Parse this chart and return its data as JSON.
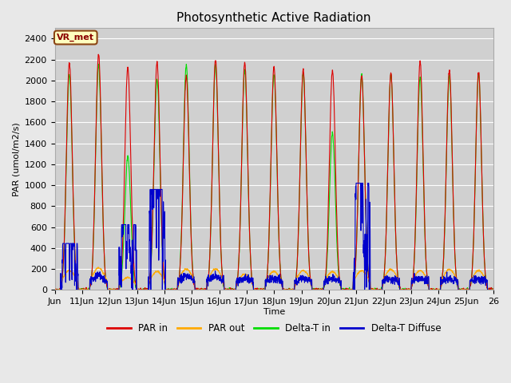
{
  "title": "Photosynthetic Active Radiation",
  "ylabel": "PAR (umol/m2/s)",
  "xlabel": "Time",
  "annotation": "VR_met",
  "ylim": [
    0,
    2500
  ],
  "colors": {
    "PAR_in": "#dd0000",
    "PAR_out": "#ffaa00",
    "Delta_T_in": "#00dd00",
    "Delta_T_Diffuse": "#0000cc"
  },
  "legend_labels": [
    "PAR in",
    "PAR out",
    "Delta-T in",
    "Delta-T Diffuse"
  ],
  "background_color": "#e8e8e8",
  "plot_bg_color": "#d0d0d0",
  "grid_color": "#ffffff",
  "title_fontsize": 11,
  "axis_fontsize": 8,
  "n_days": 15,
  "pts_per_day": 144,
  "x_tick_labels": [
    "Jun",
    "11Jun",
    "12Jun",
    "13Jun",
    "14Jun",
    "15Jun",
    "16Jun",
    "17Jun",
    "18Jun",
    "19Jun",
    "20Jun",
    "21Jun",
    "22Jun",
    "23Jun",
    "24Jun",
    "25Jun",
    "26"
  ],
  "par_in_peaks": [
    2170,
    2250,
    2130,
    2180,
    2040,
    2200,
    2170,
    2130,
    2100,
    2100,
    2050,
    2080,
    2180,
    2100,
    2080
  ],
  "par_out_peaks": [
    185,
    210,
    120,
    175,
    200,
    200,
    150,
    175,
    185,
    175,
    185,
    195,
    185,
    195,
    185
  ],
  "delta_in_peaks": [
    2060,
    2150,
    1280,
    2010,
    2150,
    2150,
    2100,
    2060,
    2070,
    1500,
    2060,
    2060,
    2030,
    2050,
    2060
  ],
  "diffuse_spiky_days": [
    0,
    1,
    2,
    3,
    4,
    5,
    10,
    14
  ],
  "diffuse_peaks": [
    370,
    250,
    520,
    800,
    250,
    220,
    850,
    130
  ]
}
